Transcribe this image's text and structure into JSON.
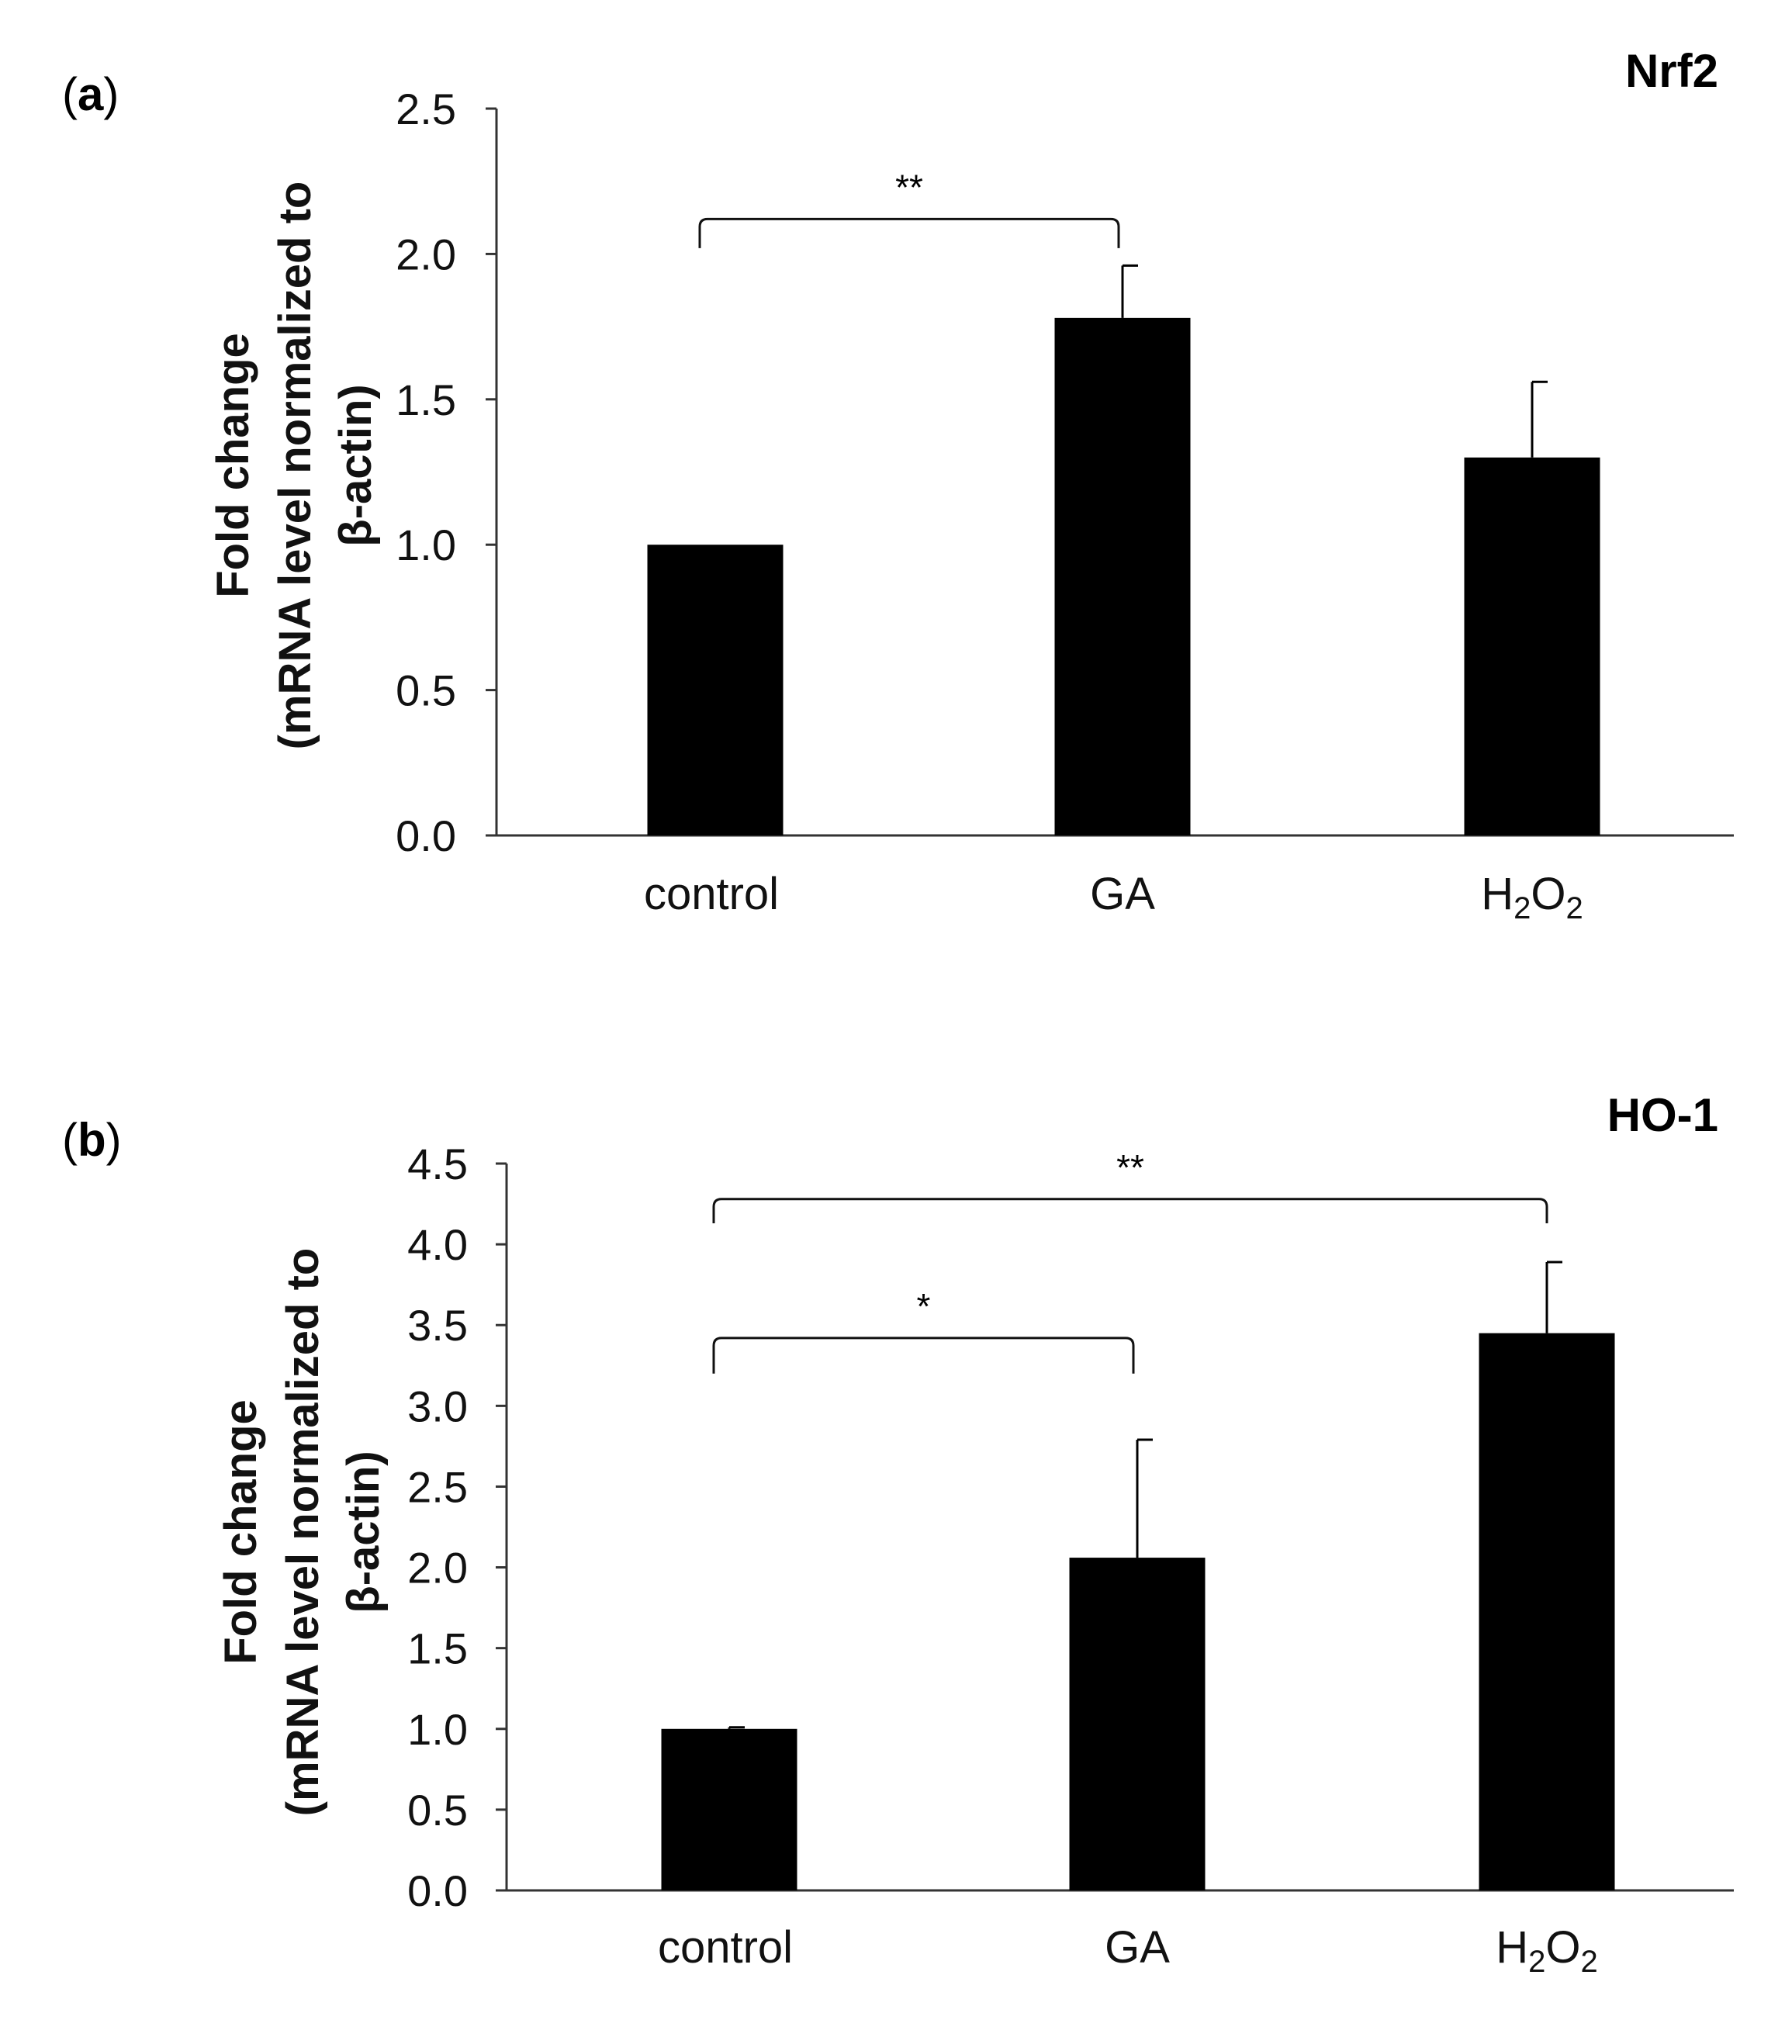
{
  "colors": {
    "bar": "#000000",
    "axis": "#333333",
    "bracket": "#111111"
  },
  "chart_data": [
    {
      "type": "bar",
      "panel_label": "a",
      "title": "Nrf2",
      "xlabel": "",
      "ylabel": [
        "Fold change",
        "(mRNA level normalized to",
        "β-actin)"
      ],
      "categories": [
        "control",
        "GA",
        "H2O2"
      ],
      "category_display": [
        {
          "main": "control"
        },
        {
          "main": "GA"
        },
        {
          "parts": [
            {
              "t": "H",
              "sub": false
            },
            {
              "t": "2",
              "sub": true
            },
            {
              "t": "O",
              "sub": false
            },
            {
              "t": "2",
              "sub": true
            }
          ]
        }
      ],
      "values": [
        1.0,
        1.78,
        1.3
      ],
      "errors": [
        0.0,
        0.18,
        0.26
      ],
      "ylim": [
        0,
        2.5
      ],
      "yticks": [
        "0.0",
        "0.5",
        "1.0",
        "1.5",
        "2.0",
        "2.5"
      ],
      "significance": [
        {
          "from": "control",
          "to": "GA",
          "label": "**",
          "y": 2.12,
          "drop": 0.1
        }
      ]
    },
    {
      "type": "bar",
      "panel_label": "b",
      "title": "HO-1",
      "xlabel": "",
      "ylabel": [
        "Fold change",
        "(mRNA level normalized to",
        "β-actin)"
      ],
      "categories": [
        "control",
        "GA",
        "H2O2"
      ],
      "category_display": [
        {
          "main": "control"
        },
        {
          "main": "GA"
        },
        {
          "parts": [
            {
              "t": "H",
              "sub": false
            },
            {
              "t": "2",
              "sub": true
            },
            {
              "t": "O",
              "sub": false
            },
            {
              "t": "2",
              "sub": true
            }
          ]
        }
      ],
      "values": [
        1.0,
        2.06,
        3.45
      ],
      "errors": [
        0.01,
        0.73,
        0.44
      ],
      "ylim": [
        0,
        4.5
      ],
      "yticks": [
        "0.0",
        "0.5",
        "1.0",
        "1.5",
        "2.0",
        "2.5",
        "3.0",
        "3.5",
        "4.0",
        "4.5"
      ],
      "significance": [
        {
          "from": "control",
          "to": "GA",
          "label": "*",
          "y": 3.42,
          "drop": 0.22
        },
        {
          "from": "control",
          "to": "H2O2",
          "label": "**",
          "y": 4.28,
          "drop": 0.15
        }
      ]
    }
  ]
}
